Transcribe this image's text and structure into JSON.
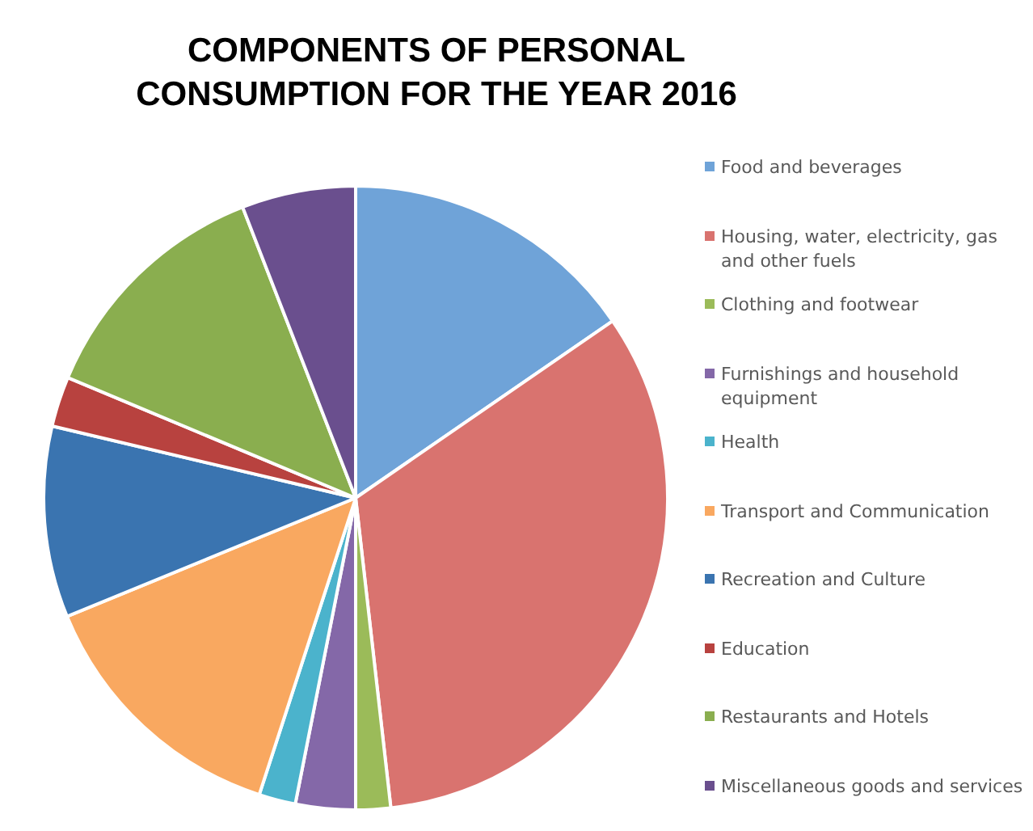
{
  "chart_data": {
    "type": "pie",
    "title": "COMPONENTS OF PERSONAL CONSUMPTION FOR THE YEAR 2016",
    "categories": [
      "Food and beverages",
      "Housing, water, electricity, gas and other fuels",
      "Clothing and footwear",
      "Furnishings and household equipment",
      "Health",
      "Transport and Communication",
      "Recreation and Culture",
      "Education",
      "Restaurants and Hotels",
      "Miscellaneous goods and services"
    ],
    "values": [
      15.4,
      32.8,
      1.8,
      3.1,
      1.9,
      13.8,
      9.9,
      2.6,
      12.8,
      5.9
    ],
    "colors": [
      "#6fa3d8",
      "#d9736f",
      "#9bbb59",
      "#8468a8",
      "#4bb3cc",
      "#f9a860",
      "#3a74b0",
      "#b8423f",
      "#8aae4f",
      "#6a4f8e"
    ],
    "legend": "right"
  }
}
